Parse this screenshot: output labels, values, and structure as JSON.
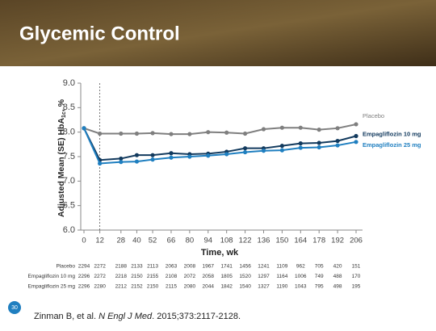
{
  "header": {
    "title": "Glycemic Control"
  },
  "chart_data": {
    "type": "line",
    "y_label": [
      "Adjusted Mean (SE) HbA",
      "1c",
      ", %"
    ],
    "x_label": "Time, wk",
    "x": [
      0,
      12,
      28,
      40,
      52,
      66,
      80,
      94,
      108,
      122,
      136,
      150,
      164,
      178,
      192,
      206
    ],
    "xlim": [
      0,
      206
    ],
    "xticks": [
      0,
      12,
      28,
      40,
      52,
      66,
      80,
      94,
      108,
      122,
      136,
      150,
      164,
      178,
      192,
      206
    ],
    "ylim": [
      6,
      9
    ],
    "yticks": [
      {
        "value": 6,
        "label": "6.0"
      },
      {
        "value": 6.5,
        "label": "6.5"
      },
      {
        "value": 7,
        "label": "7.0"
      },
      {
        "value": 7.5,
        "label": "7.5"
      },
      {
        "value": 8,
        "label": "8.0"
      },
      {
        "value": 8.5,
        "label": "8.5"
      },
      {
        "value": 9,
        "label": "9.0"
      }
    ],
    "series": [
      {
        "name": "Placebo",
        "color": "#7f7f7f",
        "values": [
          8.08,
          7.97,
          7.97,
          7.97,
          7.98,
          7.96,
          7.96,
          8.0,
          7.99,
          7.97,
          8.06,
          8.09,
          8.09,
          8.05,
          8.08,
          8.16
        ]
      },
      {
        "name": "Empagliflozin 10 mg",
        "color": "#123a5e",
        "values": [
          8.08,
          7.43,
          7.46,
          7.53,
          7.53,
          7.57,
          7.55,
          7.56,
          7.6,
          7.67,
          7.67,
          7.72,
          7.77,
          7.78,
          7.82,
          7.92
        ]
      },
      {
        "name": "Empagliflozin 25 mg",
        "color": "#1f7fc0",
        "values": [
          8.08,
          7.36,
          7.39,
          7.4,
          7.44,
          7.48,
          7.5,
          7.52,
          7.55,
          7.59,
          7.62,
          7.63,
          7.68,
          7.69,
          7.73,
          7.8
        ]
      }
    ],
    "at_risk": [
      {
        "label": "Placebo",
        "values": [
          2294,
          2272,
          2188,
          2133,
          2113,
          2063,
          2008,
          1967,
          1741,
          1456,
          1241,
          1109,
          962,
          705,
          420,
          151
        ]
      },
      {
        "label": "Empagliflozin 10 mg",
        "values": [
          2296,
          2272,
          2218,
          2150,
          2155,
          2108,
          2072,
          2058,
          1805,
          1520,
          1297,
          1164,
          1006,
          749,
          488,
          170
        ]
      },
      {
        "label": "Empagliflozin 25 mg",
        "values": [
          2296,
          2280,
          2212,
          2152,
          2150,
          2115,
          2080,
          2044,
          1842,
          1540,
          1327,
          1190,
          1043,
          795,
          498,
          195
        ]
      }
    ]
  },
  "slide_number": "30",
  "citation": [
    "Zinman B, et al. ",
    "N Engl J Med",
    ". 2015;373:2117-2128."
  ]
}
